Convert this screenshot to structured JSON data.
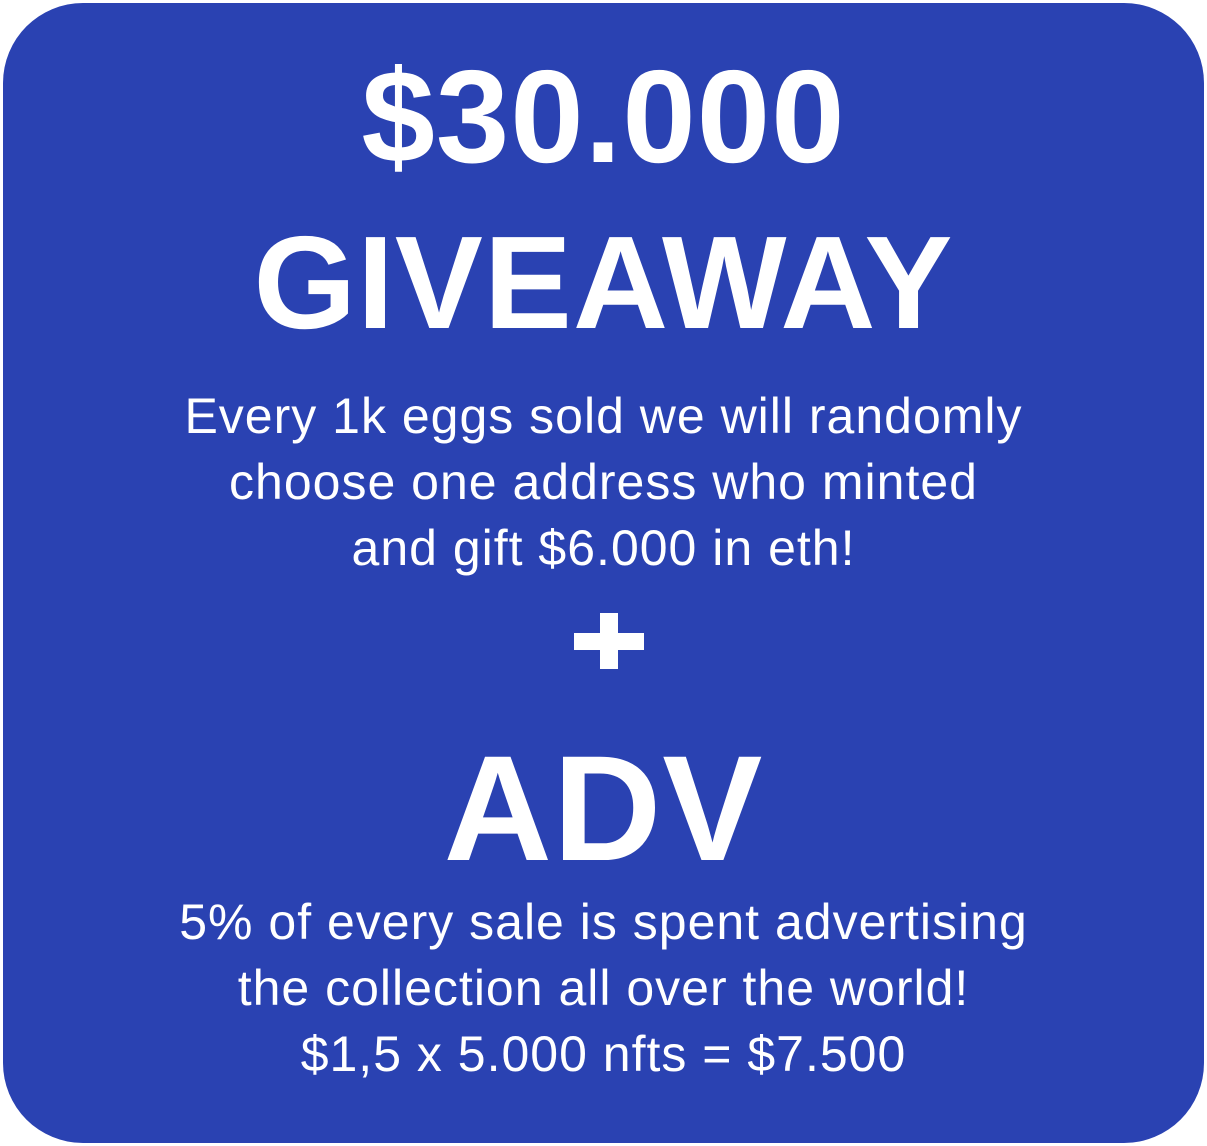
{
  "colors": {
    "background": "#2a42b2",
    "text": "#ffffff"
  },
  "giveaway": {
    "amount": "$30.000",
    "title": "GIVEAWAY",
    "lines": [
      "Every 1k eggs sold we will randomly",
      "choose one address who minted",
      "and gift $6.000 in eth!"
    ]
  },
  "separator_icon": "plus-icon",
  "adv": {
    "title": "ADV",
    "lines": [
      "5% of every sale is spent advertising",
      "the collection all over the world!",
      "$1,5 x 5.000 nfts = $7.500"
    ]
  }
}
